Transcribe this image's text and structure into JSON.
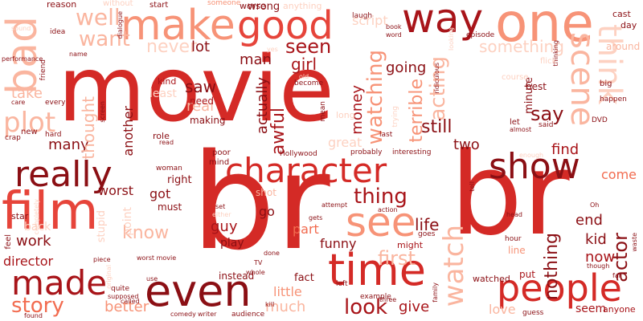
{
  "words": [
    {
      "text": "movie",
      "color": "#d42a26"
    },
    {
      "text": "br",
      "color": "#d42a26"
    },
    {
      "text": "br",
      "color": "#d42a26"
    },
    {
      "text": "one",
      "color": "#f79377"
    },
    {
      "text": "bad",
      "color": "#fab59f"
    },
    {
      "text": "film",
      "color": "#e6443a"
    },
    {
      "text": "make",
      "color": "#f79377"
    },
    {
      "text": "good",
      "color": "#e6443a"
    },
    {
      "text": "way",
      "color": "#a81419"
    },
    {
      "text": "character",
      "color": "#d42a26"
    },
    {
      "text": "really",
      "color": "#8b0f14"
    },
    {
      "text": "show",
      "color": "#8b0f14"
    },
    {
      "text": "see",
      "color": "#f79377"
    },
    {
      "text": "even",
      "color": "#8b0f14"
    },
    {
      "text": "time",
      "color": "#d42a26"
    },
    {
      "text": "made",
      "color": "#a81419"
    },
    {
      "text": "people",
      "color": "#d42a26"
    },
    {
      "text": "think",
      "color": "#fdd1c1"
    },
    {
      "text": "scene",
      "color": "#fab59f"
    },
    {
      "text": "plot",
      "color": "#fab59f"
    },
    {
      "text": "watch",
      "color": "#fab59f"
    },
    {
      "text": "thing",
      "color": "#a81419"
    },
    {
      "text": "story",
      "color": "#f26b4f"
    },
    {
      "text": "look",
      "color": "#a81419"
    },
    {
      "text": "well",
      "color": "#fab59f"
    },
    {
      "text": "want",
      "color": "#fab59f"
    },
    {
      "text": "never",
      "color": "#fdd1c1"
    },
    {
      "text": "seen",
      "color": "#a81419"
    },
    {
      "text": "lot",
      "color": "#8b0f14"
    },
    {
      "text": "man",
      "color": "#8b0f14"
    },
    {
      "text": "girl",
      "color": "#a81419"
    },
    {
      "text": "watching",
      "color": "#f79377"
    },
    {
      "text": "acting",
      "color": "#fab59f"
    },
    {
      "text": "say",
      "color": "#8b0f14"
    },
    {
      "text": "saw",
      "color": "#8b0f14"
    },
    {
      "text": "actually",
      "color": "#8b0f14"
    },
    {
      "text": "awful",
      "color": "#a81419"
    },
    {
      "text": "money",
      "color": "#a81419"
    },
    {
      "text": "terrible",
      "color": "#f79377"
    },
    {
      "text": "going",
      "color": "#8b0f14"
    },
    {
      "text": "something",
      "color": "#fdd1c1"
    },
    {
      "text": "still",
      "color": "#8b0f14"
    },
    {
      "text": "two",
      "color": "#8b0f14"
    },
    {
      "text": "find",
      "color": "#a81419"
    },
    {
      "text": "actor",
      "color": "#8b0f14"
    },
    {
      "text": "come",
      "color": "#f26b4f"
    },
    {
      "text": "end",
      "color": "#8b0f14"
    },
    {
      "text": "kid",
      "color": "#8b0f14"
    },
    {
      "text": "now",
      "color": "#a81419"
    },
    {
      "text": "nothing",
      "color": "#8b0f14"
    },
    {
      "text": "life",
      "color": "#8b0f14"
    },
    {
      "text": "first",
      "color": "#fab59f"
    },
    {
      "text": "part",
      "color": "#f26b4f"
    },
    {
      "text": "funny",
      "color": "#8b0f14"
    },
    {
      "text": "go",
      "color": "#8b0f14"
    },
    {
      "text": "guy",
      "color": "#a81419"
    },
    {
      "text": "play",
      "color": "#8b0f14"
    },
    {
      "text": "got",
      "color": "#8b0f14"
    },
    {
      "text": "know",
      "color": "#fab59f"
    },
    {
      "text": "work",
      "color": "#8b0f14"
    },
    {
      "text": "director",
      "color": "#a81419"
    },
    {
      "text": "many",
      "color": "#8b0f14"
    },
    {
      "text": "worst",
      "color": "#8b0f14"
    },
    {
      "text": "better",
      "color": "#f79377"
    },
    {
      "text": "much",
      "color": "#fab59f"
    },
    {
      "text": "little",
      "color": "#f79377"
    },
    {
      "text": "give",
      "color": "#a81419"
    },
    {
      "text": "fact",
      "color": "#8b0f14"
    },
    {
      "text": "instead",
      "color": "#8b0f14"
    },
    {
      "text": "thought",
      "color": "#fab59f"
    },
    {
      "text": "another",
      "color": "#8b0f14"
    },
    {
      "text": "take",
      "color": "#fab59f"
    },
    {
      "text": "back",
      "color": "#fdd1c1"
    },
    {
      "text": "real",
      "color": "#fab59f"
    },
    {
      "text": "need",
      "color": "#a81419"
    },
    {
      "text": "making",
      "color": "#8b0f14"
    },
    {
      "text": "great",
      "color": "#fdd1c1"
    },
    {
      "text": "best",
      "color": "#8b0f14"
    },
    {
      "text": "minute",
      "color": "#8b0f14"
    },
    {
      "text": "say",
      "color": "#8b0f14"
    },
    {
      "text": "seem",
      "color": "#a81419"
    },
    {
      "text": "anyone",
      "color": "#a81419"
    },
    {
      "text": "kind",
      "color": "#a81419"
    },
    {
      "text": "put",
      "color": "#a81419"
    },
    {
      "text": "might",
      "color": "#a81419"
    },
    {
      "text": "line",
      "color": "#f79377"
    },
    {
      "text": "hour",
      "color": "#8b0f14"
    },
    {
      "text": "role",
      "color": "#8b0f14"
    },
    {
      "text": "right",
      "color": "#8b0f14"
    },
    {
      "text": "must",
      "color": "#8b0f14"
    },
    {
      "text": "poor",
      "color": "#8b0f14"
    },
    {
      "text": "mind",
      "color": "#8b0f14"
    },
    {
      "text": "shot",
      "color": "#fab59f"
    },
    {
      "text": "star",
      "color": "#8b0f14"
    },
    {
      "text": "stupid",
      "color": "#fdd1c1"
    },
    {
      "text": "point",
      "color": "#fdd1c1"
    },
    {
      "text": "woman",
      "color": "#8b0f14"
    },
    {
      "text": "script",
      "color": "#fdd1c1"
    },
    {
      "text": "worse",
      "color": "#8b0f14"
    },
    {
      "text": "start",
      "color": "#8b0f14"
    },
    {
      "text": "wrong",
      "color": "#8b0f14"
    },
    {
      "text": "reason",
      "color": "#8b0f14"
    },
    {
      "text": "without",
      "color": "#fdd1c1"
    },
    {
      "text": "someone",
      "color": "#f79377"
    },
    {
      "text": "anything",
      "color": "#fdd1c1"
    },
    {
      "text": "laugh",
      "color": "#8b0f14"
    },
    {
      "text": "cast",
      "color": "#8b0f14"
    },
    {
      "text": "day",
      "color": "#8b0f14"
    },
    {
      "text": "episode",
      "color": "#8b0f14"
    },
    {
      "text": "around",
      "color": "#fab59f"
    },
    {
      "text": "thinking",
      "color": "#8b0f14"
    },
    {
      "text": "flick",
      "color": "#fdd1c1"
    },
    {
      "text": "big",
      "color": "#8b0f14"
    },
    {
      "text": "happen",
      "color": "#8b0f14"
    },
    {
      "text": "course",
      "color": "#fdd1c1"
    },
    {
      "text": "DVD",
      "color": "#8b0f14"
    },
    {
      "text": "let",
      "color": "#8b0f14"
    },
    {
      "text": "almost",
      "color": "#8b0f14"
    },
    {
      "text": "said",
      "color": "#8b0f14"
    },
    {
      "text": "long",
      "color": "#fdd1c1"
    },
    {
      "text": "last",
      "color": "#8b0f14"
    },
    {
      "text": "trying",
      "color": "#fdd1c1"
    },
    {
      "text": "probably",
      "color": "#8b0f14"
    },
    {
      "text": "interesting",
      "color": "#8b0f14"
    },
    {
      "text": "Hollywood",
      "color": "#8b0f14"
    },
    {
      "text": "become",
      "color": "#8b0f14"
    },
    {
      "text": "mean",
      "color": "#8b0f14"
    },
    {
      "text": "book",
      "color": "#8b0f14"
    },
    {
      "text": "word",
      "color": "#8b0f14"
    },
    {
      "text": "ridiculous",
      "color": "#8b0f14"
    },
    {
      "text": "looking",
      "color": "#fdd1c1"
    },
    {
      "text": "idea",
      "color": "#8b0f14"
    },
    {
      "text": "every",
      "color": "#8b0f14"
    },
    {
      "text": "friend",
      "color": "#8b0f14"
    },
    {
      "text": "name",
      "color": "#8b0f14"
    },
    {
      "text": "performance",
      "color": "#8b0f14"
    },
    {
      "text": "sound",
      "color": "#fdd1c1"
    },
    {
      "text": "dialogue",
      "color": "#8b0f14"
    },
    {
      "text": "screen",
      "color": "#8b0f14"
    },
    {
      "text": "care",
      "color": "#8b0f14"
    },
    {
      "text": "new",
      "color": "#8b0f14"
    },
    {
      "text": "hard",
      "color": "#8b0f14"
    },
    {
      "text": "crap",
      "color": "#8b0f14"
    },
    {
      "text": "read",
      "color": "#8b0f14"
    },
    {
      "text": "least",
      "color": "#fdd1c1"
    },
    {
      "text": "completely",
      "color": "#fdd1c1"
    },
    {
      "text": "original",
      "color": "#fdd1c1"
    },
    {
      "text": "feel",
      "color": "#8b0f14"
    },
    {
      "text": "piece",
      "color": "#8b0f14"
    },
    {
      "text": "worst movie",
      "color": "#8b0f14"
    },
    {
      "text": "called",
      "color": "#8b0f14"
    },
    {
      "text": "quite",
      "color": "#8b0f14"
    },
    {
      "text": "supposed",
      "color": "#8b0f14"
    },
    {
      "text": "use",
      "color": "#8b0f14"
    },
    {
      "text": "comedy",
      "color": "#8b0f14"
    },
    {
      "text": "writer",
      "color": "#8b0f14"
    },
    {
      "text": "found",
      "color": "#8b0f14"
    },
    {
      "text": "audience",
      "color": "#8b0f14"
    },
    {
      "text": "TV",
      "color": "#8b0f14"
    },
    {
      "text": "whole",
      "color": "#8b0f14"
    },
    {
      "text": "done",
      "color": "#8b0f14"
    },
    {
      "text": "kill",
      "color": "#8b0f14"
    },
    {
      "text": "left",
      "color": "#8b0f14"
    },
    {
      "text": "example",
      "color": "#8b0f14"
    },
    {
      "text": "three",
      "color": "#8b0f14"
    },
    {
      "text": "family",
      "color": "#8b0f14"
    },
    {
      "text": "watched",
      "color": "#8b0f14"
    },
    {
      "text": "love",
      "color": "#fab59f"
    },
    {
      "text": "guess",
      "color": "#8b0f14"
    },
    {
      "text": "goes",
      "color": "#8b0f14"
    },
    {
      "text": "gets",
      "color": "#8b0f14"
    },
    {
      "text": "attempt",
      "color": "#8b0f14"
    },
    {
      "text": "action",
      "color": "#8b0f14"
    },
    {
      "text": "set",
      "color": "#8b0f14"
    },
    {
      "text": "either",
      "color": "#8b0f14"
    },
    {
      "text": "though",
      "color": "#8b0f14"
    },
    {
      "text": "far",
      "color": "#8b0f14"
    },
    {
      "text": "head",
      "color": "#8b0f14"
    },
    {
      "text": "tell",
      "color": "#8b0f14"
    },
    {
      "text": "Oh",
      "color": "#8b0f14"
    },
    {
      "text": "waste",
      "color": "#8b0f14"
    },
    {
      "text": "enough",
      "color": "#fdd1c1"
    },
    {
      "text": "yes",
      "color": "#fdd1c1"
    },
    {
      "text": "old",
      "color": "#fdd1c1"
    }
  ]
}
